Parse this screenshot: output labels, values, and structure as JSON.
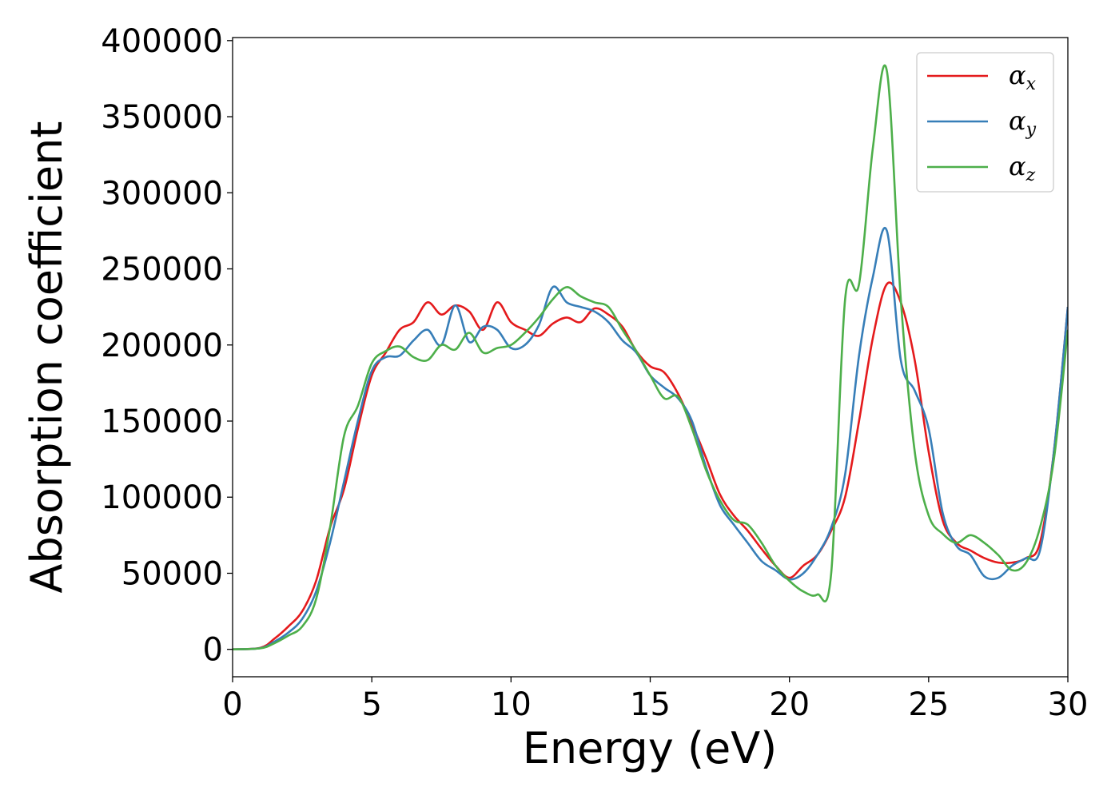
{
  "chart_data": {
    "type": "line",
    "xlabel": "Energy (eV)",
    "ylabel": "Absorption coefficient",
    "xlim": [
      0,
      30
    ],
    "ylim": [
      -18000,
      402000
    ],
    "x_ticks": [
      0,
      5,
      10,
      15,
      20,
      25,
      30
    ],
    "y_ticks": [
      0,
      50000,
      100000,
      150000,
      200000,
      250000,
      300000,
      350000,
      400000
    ],
    "grid": false,
    "legend_position": "top-right",
    "series": [
      {
        "name": "α",
        "subscript": "x",
        "color": "#e41a1c",
        "x": [
          0,
          1,
          1.5,
          2,
          2.5,
          3,
          3.5,
          4,
          4.5,
          5,
          5.5,
          6,
          6.5,
          7,
          7.5,
          8,
          8.5,
          9,
          9.5,
          10,
          10.5,
          11,
          11.5,
          12,
          12.5,
          13,
          13.5,
          14,
          14.5,
          15,
          15.5,
          16,
          16.5,
          17,
          17.5,
          18,
          18.5,
          19,
          19.5,
          20,
          20.5,
          21,
          21.5,
          22,
          22.5,
          23,
          23.5,
          24,
          24.5,
          25,
          25.5,
          26,
          26.5,
          27,
          27.5,
          28,
          28.5,
          29,
          29.5,
          30
        ],
        "y": [
          0,
          1000,
          7000,
          15000,
          25000,
          45000,
          80000,
          105000,
          145000,
          180000,
          195000,
          210000,
          215000,
          228000,
          220000,
          226000,
          222000,
          210000,
          228000,
          215000,
          210000,
          206000,
          214000,
          218000,
          215000,
          224000,
          220000,
          212000,
          196000,
          186000,
          182000,
          168000,
          148000,
          126000,
          102000,
          88000,
          78000,
          66000,
          55000,
          47000,
          55000,
          62000,
          78000,
          100000,
          150000,
          205000,
          240000,
          228000,
          190000,
          130000,
          85000,
          70000,
          65000,
          60000,
          57000,
          57000,
          60000,
          70000,
          130000,
          225000
        ]
      },
      {
        "name": "α",
        "subscript": "y",
        "color": "#377eb8",
        "x": [
          0,
          1,
          1.5,
          2,
          2.5,
          3,
          3.5,
          4,
          4.5,
          5,
          5.5,
          6,
          6.5,
          7,
          7.5,
          8,
          8.5,
          9,
          9.5,
          10,
          10.5,
          11,
          11.5,
          12,
          12.5,
          13,
          13.5,
          14,
          14.5,
          15,
          15.5,
          16,
          16.5,
          17,
          17.5,
          18,
          18.5,
          19,
          19.5,
          20,
          20.5,
          21,
          21.5,
          22,
          22.5,
          23,
          23.5,
          24,
          24.5,
          25,
          25.5,
          26,
          26.5,
          27,
          27.5,
          28,
          28.5,
          29,
          29.5,
          30
        ],
        "y": [
          0,
          800,
          5000,
          11000,
          20000,
          38000,
          70000,
          110000,
          150000,
          183000,
          192000,
          193000,
          203000,
          210000,
          200000,
          226000,
          202000,
          212000,
          210000,
          198000,
          200000,
          213000,
          238000,
          228000,
          225000,
          222000,
          215000,
          203000,
          195000,
          180000,
          172000,
          165000,
          150000,
          120000,
          95000,
          82000,
          70000,
          58000,
          52000,
          46000,
          50000,
          62000,
          80000,
          115000,
          193000,
          245000,
          275000,
          190000,
          170000,
          145000,
          90000,
          68000,
          62000,
          48000,
          47000,
          55000,
          60000,
          65000,
          130000,
          225000
        ]
      },
      {
        "name": "α",
        "subscript": "z",
        "color": "#4daf4a",
        "x": [
          0,
          1,
          1.5,
          2,
          2.5,
          3,
          3.5,
          4,
          4.5,
          5,
          5.5,
          6,
          6.5,
          7,
          7.5,
          8,
          8.5,
          9,
          9.5,
          10,
          10.5,
          11,
          11.5,
          12,
          12.5,
          13,
          13.5,
          14,
          14.5,
          15,
          15.5,
          16,
          16.5,
          17,
          17.5,
          18,
          18.5,
          19,
          19.5,
          20,
          20.5,
          21,
          21.5,
          22,
          22.5,
          23,
          23.5,
          24,
          24.5,
          25,
          25.5,
          26,
          26.5,
          27,
          27.5,
          28,
          28.5,
          29,
          29.5,
          30
        ],
        "y": [
          0,
          700,
          4000,
          9000,
          15000,
          33000,
          80000,
          140000,
          160000,
          188000,
          196000,
          199000,
          192000,
          190000,
          200000,
          197000,
          208000,
          195000,
          198000,
          200000,
          208000,
          218000,
          230000,
          238000,
          232000,
          228000,
          225000,
          210000,
          196000,
          180000,
          165000,
          166000,
          145000,
          118000,
          98000,
          85000,
          82000,
          70000,
          55000,
          45000,
          38000,
          36000,
          50000,
          230000,
          240000,
          330000,
          380000,
          230000,
          130000,
          88000,
          76000,
          70000,
          75000,
          70000,
          62000,
          52000,
          57000,
          80000,
          125000,
          210000
        ]
      }
    ]
  }
}
